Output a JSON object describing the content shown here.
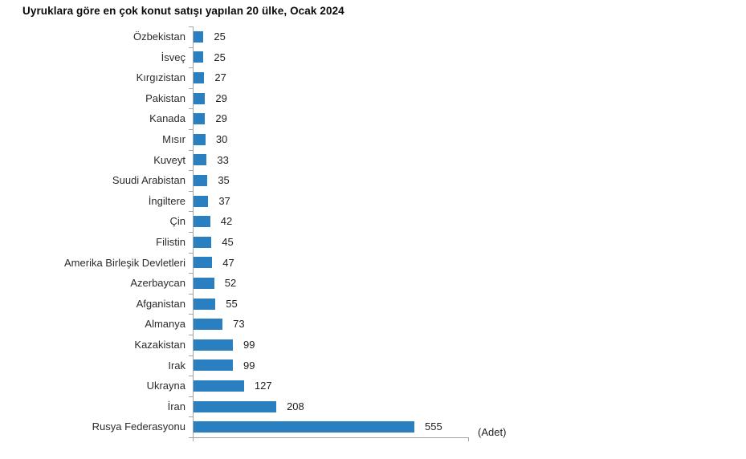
{
  "chart_data": {
    "type": "bar",
    "orientation": "horizontal",
    "title": "Uyruklara göre en çok konut satışı yapılan 20 ülke, Ocak 2024",
    "categories": [
      "Özbekistan",
      "İsveç",
      "Kırgızistan",
      "Pakistan",
      "Kanada",
      "Mısır",
      "Kuveyt",
      "Suudi Arabistan",
      "İngiltere",
      "Çin",
      "Filistin",
      "Amerika Birleşik Devletleri",
      "Azerbaycan",
      "Afganistan",
      "Almanya",
      "Kazakistan",
      "Irak",
      "Ukrayna",
      "İran",
      "Rusya Federasyonu"
    ],
    "values": [
      25,
      25,
      27,
      29,
      29,
      30,
      33,
      35,
      37,
      42,
      45,
      47,
      52,
      55,
      73,
      99,
      99,
      127,
      208,
      555
    ],
    "unit_label": "(Adet)",
    "xlabel": "(Adet)",
    "ylabel": "",
    "xlim": [
      0,
      690
    ],
    "grid": false,
    "legend": "none",
    "data_labels": true,
    "colors": {
      "bar": "#2a7fc1",
      "axis": "#a3a3a3",
      "title_text": "#0a0a0a",
      "label_text": "#2b2b2b"
    }
  }
}
